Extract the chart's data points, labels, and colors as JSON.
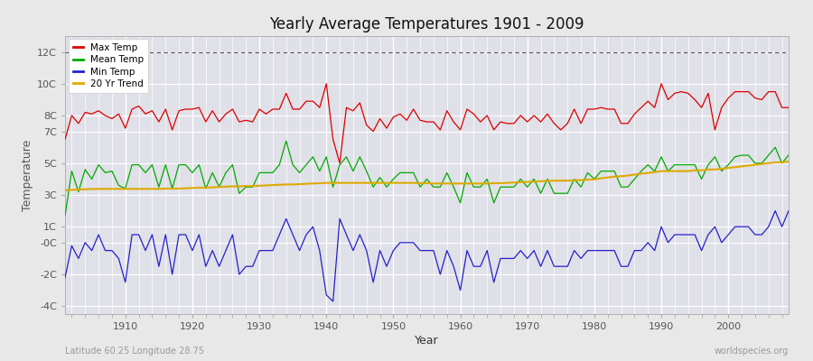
{
  "title": "Yearly Average Temperatures 1901 - 2009",
  "xlabel": "Year",
  "ylabel": "Temperature",
  "subtitle_left": "Latitude 60.25 Longitude 28.75",
  "subtitle_right": "worldspecies.org",
  "bg_color": "#e8e8e8",
  "plot_bg_color": "#e0e0e8",
  "grid_color": "#ffffff",
  "ylim": [
    -4.5,
    13.0
  ],
  "ytick_positions": [
    -4,
    -2,
    0,
    1,
    3,
    5,
    7,
    8,
    10,
    12
  ],
  "ytick_labels": [
    "-4C",
    "-2C",
    "-0C",
    "1C",
    "3C",
    "5C",
    "7C",
    "8C",
    "10C",
    "12C"
  ],
  "xlim": [
    1901,
    2009
  ],
  "years": [
    1901,
    1902,
    1903,
    1904,
    1905,
    1906,
    1907,
    1908,
    1909,
    1910,
    1911,
    1912,
    1913,
    1914,
    1915,
    1916,
    1917,
    1918,
    1919,
    1920,
    1921,
    1922,
    1923,
    1924,
    1925,
    1926,
    1927,
    1928,
    1929,
    1930,
    1931,
    1932,
    1933,
    1934,
    1935,
    1936,
    1937,
    1938,
    1939,
    1940,
    1941,
    1942,
    1943,
    1944,
    1945,
    1946,
    1947,
    1948,
    1949,
    1950,
    1951,
    1952,
    1953,
    1954,
    1955,
    1956,
    1957,
    1958,
    1959,
    1960,
    1961,
    1962,
    1963,
    1964,
    1965,
    1966,
    1967,
    1968,
    1969,
    1970,
    1971,
    1972,
    1973,
    1974,
    1975,
    1976,
    1977,
    1978,
    1979,
    1980,
    1981,
    1982,
    1983,
    1984,
    1985,
    1986,
    1987,
    1988,
    1989,
    1990,
    1991,
    1992,
    1993,
    1994,
    1995,
    1996,
    1997,
    1998,
    1999,
    2000,
    2001,
    2002,
    2003,
    2004,
    2005,
    2006,
    2007,
    2008,
    2009
  ],
  "max_temp": [
    6.5,
    8.0,
    7.5,
    8.2,
    8.1,
    8.3,
    8.0,
    7.8,
    8.1,
    7.2,
    8.4,
    8.6,
    8.1,
    8.3,
    7.6,
    8.4,
    7.1,
    8.3,
    8.4,
    8.4,
    8.5,
    7.6,
    8.3,
    7.6,
    8.1,
    8.4,
    7.6,
    7.7,
    7.6,
    8.4,
    8.1,
    8.4,
    8.4,
    9.4,
    8.4,
    8.4,
    8.9,
    8.9,
    8.5,
    10.0,
    6.5,
    5.0,
    8.5,
    8.3,
    8.8,
    7.4,
    7.0,
    7.8,
    7.2,
    7.9,
    8.1,
    7.7,
    8.4,
    7.7,
    7.6,
    7.6,
    7.1,
    8.3,
    7.6,
    7.1,
    8.4,
    8.1,
    7.6,
    8.0,
    7.1,
    7.6,
    7.5,
    7.5,
    8.0,
    7.6,
    8.0,
    7.6,
    8.1,
    7.5,
    7.1,
    7.5,
    8.4,
    7.5,
    8.4,
    8.4,
    8.5,
    8.4,
    8.4,
    7.5,
    7.5,
    8.1,
    8.5,
    8.9,
    8.5,
    10.0,
    9.0,
    9.4,
    9.5,
    9.4,
    9.0,
    8.5,
    9.4,
    7.1,
    8.5,
    9.1,
    9.5,
    9.5,
    9.5,
    9.1,
    9.0,
    9.5,
    9.5,
    8.5,
    8.5
  ],
  "mean_temp": [
    1.7,
    4.5,
    3.2,
    4.6,
    4.0,
    4.9,
    4.4,
    4.5,
    3.6,
    3.4,
    4.9,
    4.9,
    4.4,
    4.9,
    3.5,
    4.9,
    3.4,
    4.9,
    4.9,
    4.4,
    4.9,
    3.4,
    4.4,
    3.5,
    4.4,
    4.9,
    3.1,
    3.5,
    3.5,
    4.4,
    4.4,
    4.4,
    4.9,
    6.4,
    4.9,
    4.4,
    4.9,
    5.4,
    4.5,
    5.4,
    3.5,
    4.9,
    5.4,
    4.5,
    5.4,
    4.5,
    3.5,
    4.1,
    3.5,
    4.0,
    4.4,
    4.4,
    4.4,
    3.5,
    4.0,
    3.5,
    3.5,
    4.4,
    3.5,
    2.5,
    4.4,
    3.5,
    3.5,
    4.0,
    2.5,
    3.5,
    3.5,
    3.5,
    4.0,
    3.5,
    4.0,
    3.1,
    4.0,
    3.1,
    3.1,
    3.1,
    4.0,
    3.5,
    4.4,
    4.0,
    4.5,
    4.5,
    4.5,
    3.5,
    3.5,
    4.0,
    4.5,
    4.9,
    4.5,
    5.4,
    4.5,
    4.9,
    4.9,
    4.9,
    4.9,
    4.0,
    4.9,
    5.4,
    4.5,
    4.9,
    5.4,
    5.5,
    5.5,
    5.0,
    5.0,
    5.5,
    6.0,
    5.0,
    5.5
  ],
  "min_temp": [
    -2.2,
    -0.2,
    -1.0,
    0.0,
    -0.5,
    0.5,
    -0.5,
    -0.5,
    -1.0,
    -2.5,
    0.5,
    0.5,
    -0.5,
    0.5,
    -1.5,
    0.5,
    -2.0,
    0.5,
    0.5,
    -0.5,
    0.5,
    -1.5,
    -0.5,
    -1.5,
    -0.5,
    0.5,
    -2.0,
    -1.5,
    -1.5,
    -0.5,
    -0.5,
    -0.5,
    0.5,
    1.5,
    0.5,
    -0.5,
    0.5,
    1.0,
    -0.5,
    -3.3,
    -3.7,
    1.5,
    0.5,
    -0.5,
    0.5,
    -0.5,
    -2.5,
    -0.5,
    -1.5,
    -0.5,
    0.0,
    0.0,
    0.0,
    -0.5,
    -0.5,
    -0.5,
    -2.0,
    -0.5,
    -1.5,
    -3.0,
    -0.5,
    -1.5,
    -1.5,
    -0.5,
    -2.5,
    -1.0,
    -1.0,
    -1.0,
    -0.5,
    -1.0,
    -0.5,
    -1.5,
    -0.5,
    -1.5,
    -1.5,
    -1.5,
    -0.5,
    -1.0,
    -0.5,
    -0.5,
    -0.5,
    -0.5,
    -0.5,
    -1.5,
    -1.5,
    -0.5,
    -0.5,
    0.0,
    -0.5,
    1.0,
    0.0,
    0.5,
    0.5,
    0.5,
    0.5,
    -0.5,
    0.5,
    1.0,
    0.0,
    0.5,
    1.0,
    1.0,
    1.0,
    0.5,
    0.5,
    1.0,
    2.0,
    1.0,
    2.0
  ],
  "trend": [
    3.3,
    3.32,
    3.34,
    3.36,
    3.37,
    3.38,
    3.38,
    3.38,
    3.38,
    3.38,
    3.38,
    3.38,
    3.38,
    3.38,
    3.38,
    3.4,
    3.4,
    3.4,
    3.42,
    3.44,
    3.46,
    3.46,
    3.48,
    3.5,
    3.52,
    3.54,
    3.54,
    3.56,
    3.56,
    3.58,
    3.6,
    3.62,
    3.64,
    3.66,
    3.66,
    3.68,
    3.7,
    3.72,
    3.74,
    3.76,
    3.76,
    3.76,
    3.76,
    3.76,
    3.76,
    3.76,
    3.76,
    3.76,
    3.76,
    3.76,
    3.76,
    3.76,
    3.76,
    3.74,
    3.74,
    3.72,
    3.72,
    3.72,
    3.72,
    3.72,
    3.72,
    3.72,
    3.72,
    3.72,
    3.74,
    3.74,
    3.76,
    3.78,
    3.8,
    3.82,
    3.84,
    3.86,
    3.88,
    3.9,
    3.9,
    3.9,
    3.92,
    3.94,
    3.96,
    3.98,
    4.05,
    4.1,
    4.15,
    4.18,
    4.22,
    4.28,
    4.34,
    4.38,
    4.44,
    4.5,
    4.5,
    4.5,
    4.5,
    4.5,
    4.55,
    4.55,
    4.6,
    4.6,
    4.65,
    4.7,
    4.75,
    4.8,
    4.85,
    4.9,
    4.95,
    5.0,
    5.05,
    5.05,
    5.1
  ],
  "max_color": "#dd0000",
  "mean_color": "#00aa00",
  "min_color": "#2222cc",
  "trend_color": "#ddaa00",
  "dashed_line_y": 12,
  "dashed_line_color": "#555555",
  "legend_marker_size": 8
}
